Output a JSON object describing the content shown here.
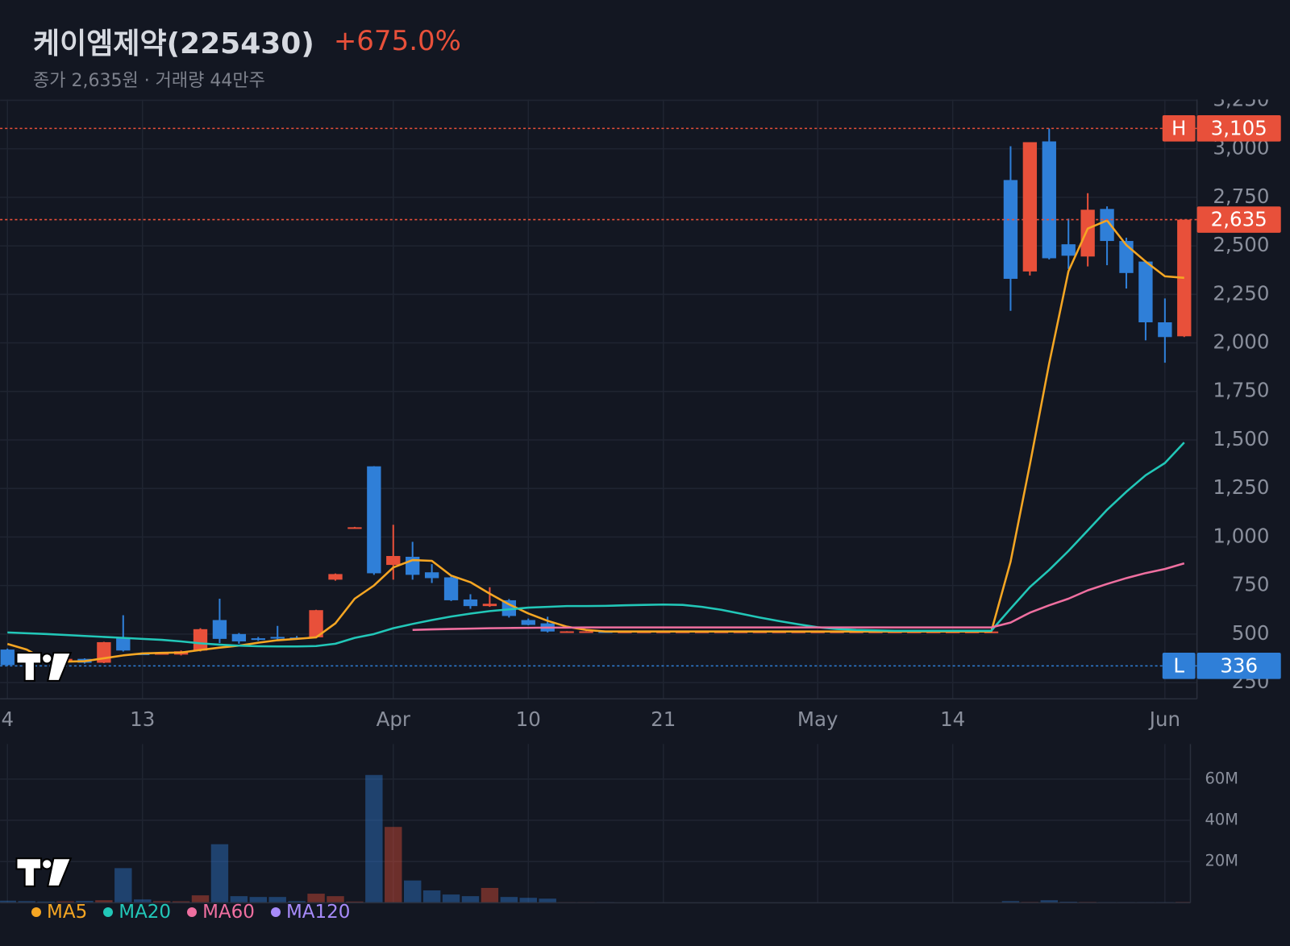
{
  "chart_data": {
    "type": "candlestick",
    "title": "케이엠제약(225430)",
    "change": "+675.0%",
    "subtitle": "종가 2,635원 · 거래량 44만주",
    "up_color": "#e8503a",
    "down_color": "#2f7fd8",
    "grid": true,
    "categories": [
      "4",
      null,
      null,
      null,
      null,
      null,
      null,
      "13",
      null,
      null,
      null,
      null,
      null,
      null,
      null,
      null,
      null,
      null,
      null,
      null,
      "Apr",
      null,
      null,
      null,
      null,
      null,
      null,
      "10",
      null,
      null,
      null,
      null,
      null,
      null,
      "21",
      null,
      null,
      null,
      null,
      null,
      null,
      null,
      "May",
      null,
      null,
      null,
      null,
      null,
      null,
      "14",
      null,
      null,
      null,
      null,
      null,
      null,
      null,
      null,
      null,
      null,
      "Jun",
      null
    ],
    "open": [
      420,
      390,
      370,
      360,
      372,
      352,
      479,
      400,
      398,
      394,
      415,
      572,
      500,
      478,
      485,
      482,
      483,
      780,
      1045,
      1364,
      856,
      898,
      818,
      792,
      678,
      644,
      674,
      572,
      555,
      512,
      513,
      514,
      513,
      513,
      513,
      513,
      513,
      513,
      513,
      513,
      513,
      513,
      513,
      513,
      513,
      513,
      513,
      513,
      513,
      513,
      513,
      513,
      2839,
      2368,
      3038,
      2508,
      2445,
      2690,
      2525,
      2419,
      2106,
      2034
    ],
    "high": [
      425,
      395,
      375,
      378,
      375,
      460,
      597,
      405,
      403,
      415,
      530,
      682,
      505,
      485,
      542,
      490,
      625,
      812,
      1052,
      1365,
      1063,
      975,
      860,
      800,
      705,
      741,
      680,
      580,
      589,
      515,
      515,
      515,
      513,
      513,
      513,
      513,
      513,
      513,
      513,
      513,
      513,
      513,
      513,
      513,
      513,
      513,
      513,
      513,
      513,
      513,
      513,
      513,
      3013,
      3034,
      3105,
      2640,
      2771,
      2703,
      2542,
      2425,
      2229,
      2635
    ],
    "low": [
      336,
      365,
      355,
      358,
      348,
      350,
      410,
      395,
      395,
      390,
      410,
      453,
      450,
      465,
      470,
      470,
      478,
      775,
      1043,
      805,
      780,
      780,
      763,
      670,
      630,
      640,
      585,
      545,
      508,
      511,
      512,
      512,
      513,
      513,
      513,
      513,
      513,
      513,
      513,
      513,
      513,
      513,
      513,
      513,
      513,
      513,
      513,
      513,
      513,
      513,
      513,
      513,
      2165,
      2347,
      2430,
      2381,
      2394,
      2400,
      2280,
      2013,
      1898,
      2030
    ],
    "close": [
      340,
      370,
      360,
      372,
      352,
      458,
      415,
      398,
      402,
      411,
      525,
      475,
      462,
      472,
      480,
      478,
      623,
      809,
      1050,
      813,
      902,
      805,
      788,
      674,
      644,
      656,
      593,
      547,
      513,
      514,
      514,
      513,
      513,
      513,
      513,
      513,
      513,
      513,
      513,
      513,
      513,
      513,
      513,
      513,
      513,
      513,
      513,
      513,
      513,
      513,
      513,
      513,
      2330,
      3034,
      2436,
      2449,
      2686,
      2525,
      2360,
      2106,
      2030,
      2635
    ],
    "ylim": [
      166,
      3254
    ],
    "yticks": [
      250,
      500,
      750,
      {
        "value": 1000,
        "label": "1,000"
      },
      {
        "value": 1250,
        "label": "1,250"
      },
      {
        "value": 1500,
        "label": "1,500"
      },
      {
        "value": 1750,
        "label": "1,750"
      },
      {
        "value": 2000,
        "label": "2,000"
      },
      {
        "value": 2250,
        "label": "2,250"
      },
      {
        "value": 2500,
        "label": "2,500"
      },
      {
        "value": 2750,
        "label": "2,750"
      },
      {
        "value": 3000,
        "label": "3,000"
      },
      {
        "value": 3250,
        "label": "3,250"
      }
    ],
    "markers": {
      "high": {
        "tag": "H",
        "value": 3105,
        "label": "3,105"
      },
      "last": {
        "value": 2635,
        "label": "2,635"
      },
      "low": {
        "tag": "L",
        "value": 336,
        "label": "336"
      }
    },
    "moving_averages": [
      {
        "name": "MA5",
        "color": "#f5a623",
        "values": [
          449,
          420,
          365,
          358,
          360,
          375,
          390,
          400,
          403,
          405,
          418,
          430,
          440,
          455,
          468,
          475,
          483,
          555,
          682,
          750,
          843,
          881,
          877,
          801,
          767,
          708,
          653,
          606,
          568,
          538,
          521,
          513,
          513,
          513,
          513,
          513,
          513,
          513,
          513,
          513,
          513,
          513,
          513,
          513,
          513,
          513,
          513,
          513,
          513,
          513,
          513,
          513,
          873,
          1373,
          1894,
          2369,
          2589,
          2631,
          2504,
          2419,
          2343,
          2335
        ]
      },
      {
        "name": "MA20",
        "color": "#22c7b8",
        "values": [
          508,
          504,
          500,
          495,
          490,
          485,
          480,
          475,
          470,
          462,
          452,
          445,
          440,
          437,
          436,
          436,
          438,
          450,
          480,
          500,
          530,
          552,
          572,
          590,
          605,
          618,
          627,
          636,
          640,
          644,
          644,
          645,
          648,
          650,
          652,
          650,
          640,
          625,
          605,
          585,
          567,
          550,
          535,
          526,
          521,
          519,
          517,
          517,
          517,
          517,
          517,
          517,
          631,
          742,
          830,
          928,
          1034,
          1140,
          1233,
          1318,
          1381,
          1487
        ]
      },
      {
        "name": "MA60",
        "color": "#ef6fa0",
        "values": [
          null,
          null,
          null,
          null,
          null,
          null,
          null,
          null,
          null,
          null,
          null,
          null,
          null,
          null,
          null,
          null,
          null,
          null,
          null,
          null,
          null,
          521,
          524,
          526,
          528,
          530,
          531,
          532,
          533,
          533,
          534,
          534,
          534,
          534,
          534,
          534,
          534,
          534,
          534,
          534,
          534,
          534,
          534,
          534,
          534,
          534,
          534,
          534,
          534,
          534,
          534,
          534,
          559,
          610,
          648,
          682,
          725,
          758,
          788,
          814,
          835,
          864
        ]
      },
      {
        "name": "MA120",
        "color": "#a78bfa",
        "values": [
          null,
          null,
          null,
          null,
          null,
          null,
          null,
          null,
          null,
          null,
          null,
          null,
          null,
          null,
          null,
          null,
          null,
          null,
          null,
          null,
          null,
          null,
          null,
          null,
          null,
          null,
          null,
          null,
          null,
          null,
          null,
          null,
          null,
          null,
          null,
          null,
          null,
          null,
          null,
          null,
          null,
          null,
          null,
          null,
          null,
          null,
          null,
          null,
          null,
          null,
          null,
          null,
          null,
          null,
          null,
          null,
          null,
          null,
          null,
          null,
          null,
          null
        ]
      }
    ],
    "volume": {
      "type": "bar",
      "values": [
        1.0,
        0.8,
        0.6,
        0.7,
        0.9,
        1.2,
        16.8,
        1.6,
        0.8,
        0.7,
        3.6,
        28.4,
        3.2,
        2.8,
        2.8,
        0.8,
        4.4,
        3.2,
        0.6,
        62,
        36.8,
        10.8,
        6,
        4,
        3.2,
        7.2,
        2.8,
        2.4,
        2,
        0.3,
        0.3,
        0.3,
        0,
        0,
        0,
        0,
        0,
        0,
        0,
        0,
        0,
        0,
        0,
        0,
        0,
        0,
        0,
        0,
        0,
        0,
        0,
        0,
        0.8,
        0.4,
        1.2,
        0.5,
        0.4,
        0.3,
        0.3,
        0.3,
        0.3,
        0.4
      ],
      "ylim": [
        0,
        77
      ],
      "yticks": [
        {
          "value": 20,
          "label": "20M"
        },
        {
          "value": 40,
          "label": "40M"
        },
        {
          "value": 60,
          "label": "60M"
        }
      ]
    }
  }
}
